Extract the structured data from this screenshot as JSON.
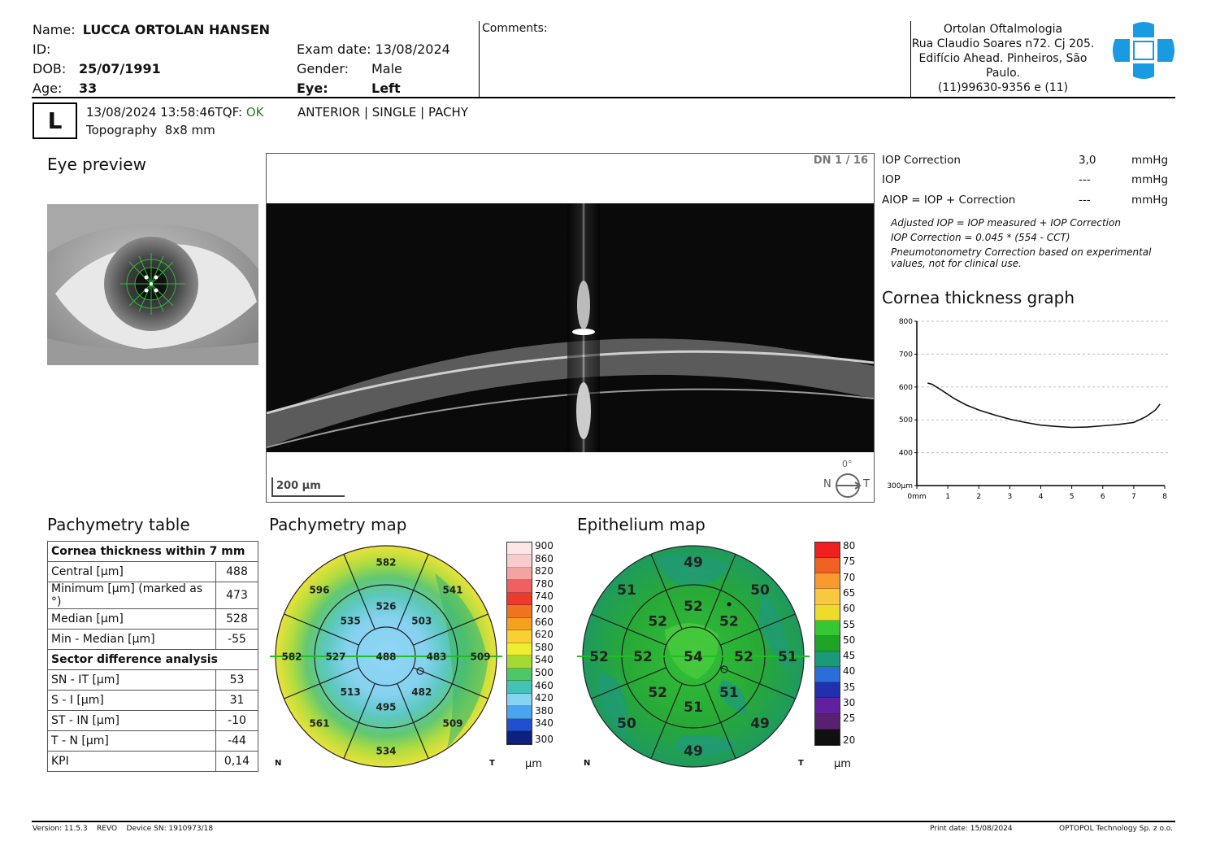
{
  "patient": {
    "name_label": "Name:",
    "name": "LUCCA ORTOLAN HANSEN",
    "id_label": "ID:",
    "id": "",
    "dob_label": "DOB:",
    "dob": "25/07/1991",
    "age_label": "Age:",
    "age": "33"
  },
  "exam": {
    "date_label": "Exam date:",
    "date": "13/08/2024",
    "gender_label": "Gender:",
    "gender": "Male",
    "eye_label": "Eye:",
    "eye": "Left"
  },
  "comments_label": "Comments:",
  "clinic": {
    "lines": [
      "Ortolan Oftalmologia",
      "Rua Claudio Soares n72. Cj 205.",
      "Edifício Ahead. Pinheiros, São",
      "Paulo.",
      "(11)99630-9356 e (11)"
    ],
    "logo_color": "#1a9ae0"
  },
  "scan": {
    "eye_badge": "L",
    "datetime": "13/08/2024 13:58:46",
    "tqf_label": "TQF:",
    "tqf_value": "OK",
    "tqf_color": "#1a8a1a",
    "mode": "Topography  8x8 mm",
    "type": "ANTERIOR | SINGLE | PACHY"
  },
  "eye_preview": {
    "title": "Eye preview"
  },
  "bscan": {
    "counter": "DN 1 / 16",
    "scale": "200 µm",
    "orient_n": "N",
    "orient_t": "T",
    "angle": "0°"
  },
  "iop": {
    "rows": [
      {
        "label": "IOP Correction",
        "value": "3,0",
        "unit": "mmHg"
      },
      {
        "label": "IOP",
        "value": "---",
        "unit": "mmHg"
      },
      {
        "label": "AIOP = IOP + Correction",
        "value": "---",
        "unit": "mmHg"
      }
    ],
    "notes": [
      "Adjusted IOP = IOP measured + IOP Correction",
      "IOP Correction = 0.045 * (554 - CCT)",
      "Pneumotonometry Correction based on experimental",
      "values, not for clinical use."
    ]
  },
  "chart_data": {
    "type": "line",
    "title": "Cornea thickness graph",
    "xlabel": "",
    "ylabel": "",
    "x_ticks": [
      "0mm",
      "1",
      "2",
      "3",
      "4",
      "5",
      "6",
      "7",
      "8"
    ],
    "y_ticks": [
      "300µm",
      "400",
      "500",
      "600",
      "700",
      "800"
    ],
    "xlim": [
      0,
      8
    ],
    "ylim": [
      300,
      800
    ],
    "grid": true,
    "series": [
      {
        "x": [
          0.35,
          0.5,
          0.8,
          1.2,
          1.6,
          2.0,
          2.5,
          3.0,
          3.5,
          4.0,
          4.5,
          5.0,
          5.5,
          6.0,
          6.5,
          7.0,
          7.4,
          7.7,
          7.85
        ],
        "y": [
          612,
          608,
          590,
          565,
          545,
          530,
          515,
          502,
          492,
          484,
          480,
          477,
          478,
          482,
          486,
          492,
          510,
          530,
          548
        ]
      }
    ]
  },
  "pachy_table": {
    "title": "Pachymetry table",
    "header1": "Cornea thickness within 7 mm",
    "rows1": [
      {
        "label": "Central [µm]",
        "value": "488"
      },
      {
        "label": "Minimum [µm] (marked as °)",
        "value": "473"
      },
      {
        "label": "Median [µm]",
        "value": "528"
      },
      {
        "label": "Min - Median [µm]",
        "value": "-55"
      }
    ],
    "header2": "Sector difference analysis",
    "rows2": [
      {
        "label": "SN - IT [µm]",
        "value": "53"
      },
      {
        "label": "S - I [µm]",
        "value": "31"
      },
      {
        "label": "ST - IN [µm]",
        "value": "-10"
      },
      {
        "label": "T - N [µm]",
        "value": "-44"
      },
      {
        "label": "KPI",
        "value": "0,14"
      }
    ]
  },
  "pachy_map": {
    "title": "Pachymetry map",
    "center": "488",
    "inner": [
      "526",
      "503",
      "483",
      "482",
      "495",
      "513",
      "527",
      "535"
    ],
    "outer": [
      "582",
      "541",
      "509",
      "509",
      "534",
      "561",
      "582",
      "596"
    ],
    "label_n": "N",
    "label_t": "T",
    "unit": "µm",
    "scale": [
      "900",
      "860",
      "820",
      "780",
      "740",
      "700",
      "660",
      "620",
      "580",
      "540",
      "500",
      "460",
      "420",
      "380",
      "340",
      "300"
    ],
    "scale_colors": [
      "#fde6e6",
      "#f8cccc",
      "#f4a3a3",
      "#f06060",
      "#ee3a2a",
      "#f07420",
      "#f5a020",
      "#f8d030",
      "#eeee30",
      "#a6da32",
      "#4cc86a",
      "#46c2b4",
      "#86d4f4",
      "#4aa4f0",
      "#2050d0",
      "#102080"
    ]
  },
  "epi_map": {
    "title": "Epithelium map",
    "center": "54",
    "inner": [
      "52",
      "52",
      "52",
      "51",
      "51",
      "52",
      "52",
      "52"
    ],
    "outer": [
      "49",
      "50",
      "51",
      "49",
      "49",
      "50",
      "52",
      "51"
    ],
    "label_n": "N",
    "label_t": "T",
    "unit": "µm",
    "scale": [
      "80",
      "75",
      "70",
      "65",
      "60",
      "55",
      "50",
      "45",
      "40",
      "35",
      "30",
      "25",
      "20"
    ],
    "scale_colors": [
      "#ee2020",
      "#f06020",
      "#f89a30",
      "#f8c840",
      "#eedc2a",
      "#36c832",
      "#20a428",
      "#1a9a7a",
      "#2a6ed8",
      "#2030b0",
      "#6020a0",
      "#5a2070",
      "#101010"
    ]
  },
  "footer": {
    "version": "Version: 11.5.3    REVO    Device SN: 1910973/18",
    "print_date": "Print date: 15/08/2024",
    "company": "OPTOPOL Technology Sp. z o.o."
  }
}
